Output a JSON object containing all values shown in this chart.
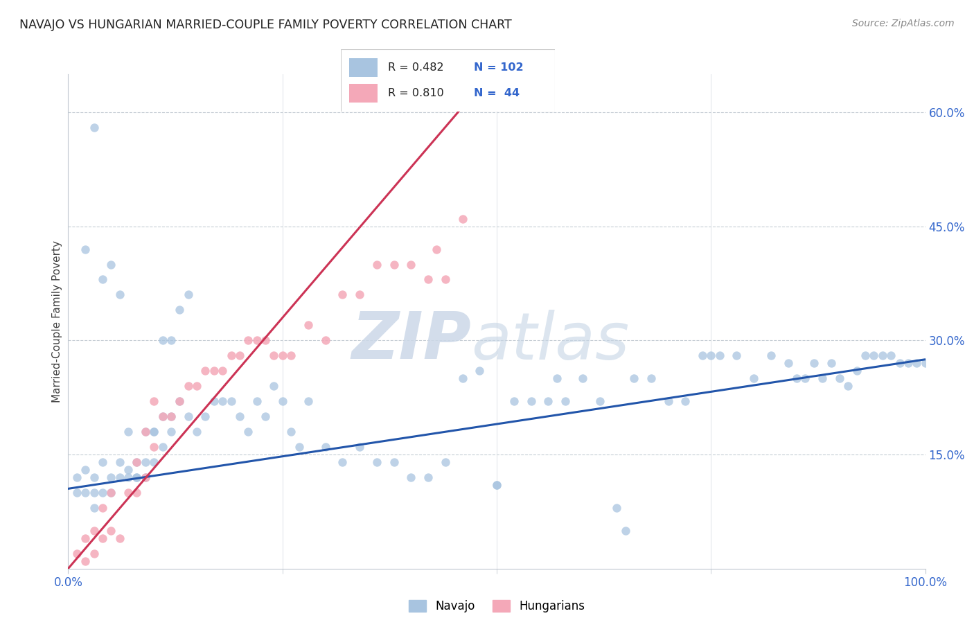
{
  "title": "NAVAJO VS HUNGARIAN MARRIED-COUPLE FAMILY POVERTY CORRELATION CHART",
  "source": "Source: ZipAtlas.com",
  "ylabel": "Married-Couple Family Poverty",
  "navajo_R": 0.482,
  "navajo_N": 102,
  "hungarian_R": 0.81,
  "hungarian_N": 44,
  "navajo_color": "#a8c4e0",
  "hungarian_color": "#f4a8b8",
  "navajo_line_color": "#2255aa",
  "hungarian_line_color": "#cc3355",
  "watermark_zip": "ZIP",
  "watermark_atlas": "atlas",
  "xlim": [
    0,
    100
  ],
  "ylim": [
    0,
    65
  ],
  "ytick_vals": [
    15,
    30,
    45,
    60
  ],
  "ytick_labels": [
    "15.0%",
    "30.0%",
    "45.0%",
    "60.0%"
  ],
  "xtick_vals": [
    0,
    100
  ],
  "xtick_labels": [
    "0.0%",
    "100.0%"
  ],
  "navajo_line_x": [
    0,
    100
  ],
  "navajo_line_y": [
    10.5,
    27.5
  ],
  "hungarian_line_x": [
    0,
    47
  ],
  "hungarian_line_y": [
    0,
    62
  ],
  "navajo_x": [
    1,
    1,
    2,
    2,
    3,
    3,
    3,
    4,
    4,
    5,
    5,
    6,
    6,
    7,
    7,
    8,
    8,
    9,
    9,
    10,
    10,
    11,
    11,
    12,
    12,
    13,
    14,
    15,
    16,
    17,
    18,
    19,
    20,
    21,
    22,
    23,
    24,
    25,
    26,
    27,
    28,
    30,
    32,
    34,
    36,
    38,
    40,
    42,
    44,
    46,
    48,
    50,
    50,
    52,
    54,
    56,
    57,
    58,
    60,
    62,
    64,
    65,
    66,
    68,
    70,
    72,
    74,
    75,
    76,
    78,
    80,
    82,
    84,
    85,
    86,
    87,
    88,
    89,
    90,
    91,
    92,
    93,
    94,
    95,
    96,
    97,
    98,
    99,
    100,
    2,
    3,
    4,
    5,
    6,
    7,
    8,
    9,
    10,
    11,
    12,
    13,
    14
  ],
  "navajo_y": [
    10,
    12,
    10,
    13,
    8,
    10,
    12,
    10,
    14,
    10,
    12,
    12,
    14,
    12,
    13,
    14,
    12,
    14,
    18,
    14,
    18,
    16,
    20,
    18,
    20,
    22,
    20,
    18,
    20,
    22,
    22,
    22,
    20,
    18,
    22,
    20,
    24,
    22,
    18,
    16,
    22,
    16,
    14,
    16,
    14,
    14,
    12,
    12,
    14,
    25,
    26,
    11,
    11,
    22,
    22,
    22,
    25,
    22,
    25,
    22,
    8,
    5,
    25,
    25,
    22,
    22,
    28,
    28,
    28,
    28,
    25,
    28,
    27,
    25,
    25,
    27,
    25,
    27,
    25,
    24,
    26,
    28,
    28,
    28,
    28,
    27,
    27,
    27,
    27,
    42,
    58,
    38,
    40,
    36,
    18,
    12,
    12,
    18,
    30,
    30,
    34,
    36
  ],
  "hungarian_x": [
    1,
    2,
    2,
    3,
    3,
    4,
    4,
    5,
    5,
    6,
    7,
    8,
    8,
    9,
    9,
    10,
    10,
    11,
    12,
    13,
    14,
    15,
    16,
    17,
    18,
    19,
    20,
    21,
    22,
    23,
    24,
    25,
    26,
    28,
    30,
    32,
    34,
    36,
    38,
    40,
    42,
    43,
    44,
    46
  ],
  "hungarian_y": [
    2,
    1,
    4,
    2,
    5,
    4,
    8,
    5,
    10,
    4,
    10,
    10,
    14,
    12,
    18,
    16,
    22,
    20,
    20,
    22,
    24,
    24,
    26,
    26,
    26,
    28,
    28,
    30,
    30,
    30,
    28,
    28,
    28,
    32,
    30,
    36,
    36,
    40,
    40,
    40,
    38,
    42,
    38,
    46
  ]
}
